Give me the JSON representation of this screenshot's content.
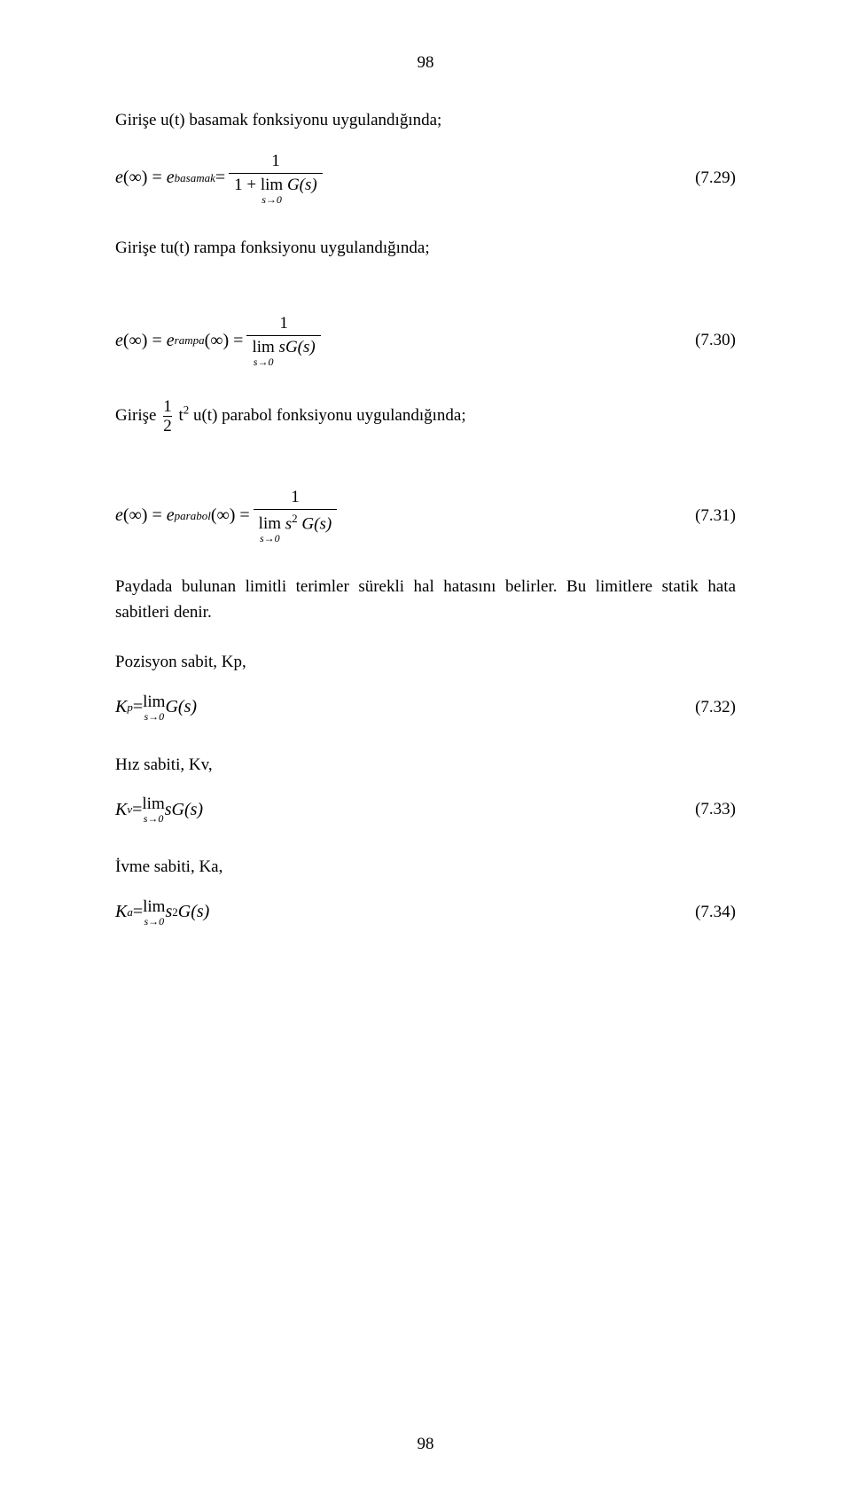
{
  "pagenum_top": "98",
  "pagenum_bottom": "98",
  "line1": "Girişe u(t)  basamak fonksiyonu uygulandığında;",
  "eq29": {
    "lhs_e": "e",
    "lhs_inf": "(∞) =",
    "lhs_sub": "basamak",
    "eq": " =",
    "num1": "1",
    "den_prefix": "1 + ",
    "lim": "lim",
    "limsub": "s→0",
    "Gs": "G(s)",
    "num": "(7.29)"
  },
  "line2": "Girişe tu(t) rampa fonksiyonu uygulandığında;",
  "eq30": {
    "lhs_e": "e",
    "inf1": "(∞) =",
    "sub_rampa": "rampa",
    "inf2": "(∞) =",
    "num1": "1",
    "lim": "lim",
    "limsub": "s→0",
    "sGs": "sG(s)",
    "num": "(7.30)"
  },
  "line3_pre": "Girişe ",
  "line3_frac_num": "1",
  "line3_frac_den": "2",
  "line3_t": " t",
  "line3_sup": "2",
  "line3_rest": " u(t) parabol fonksiyonu uygulandığında;",
  "eq31": {
    "lhs_e": "e",
    "inf1": "(∞) =",
    "sub_parabol": "parabol",
    "inf2": "(∞) =",
    "num1": "1",
    "lim": "lim",
    "limsub": "s→0",
    "s": "s",
    "sup2": "2",
    "Gs": "G(s)",
    "num": "(7.31)"
  },
  "line4": "Paydada bulunan limitli terimler sürekli hal hatasını belirler. Bu limitlere statik hata sabitleri denir.",
  "line5": "Pozisyon sabit, Kp,",
  "eq32": {
    "K": "K",
    "sub": "p",
    "eq": " = ",
    "lim": "lim",
    "limsub": "s→0",
    "Gs": "G(s)",
    "num": "(7.32)"
  },
  "line6": "Hız sabiti, Kv,",
  "eq33": {
    "K": "K",
    "sub": "v",
    "eq": " = ",
    "lim": "lim",
    "limsub": "s→0",
    "sGs": "sG(s)",
    "num": "(7.33)"
  },
  "line7": "İvme sabiti, Ka,",
  "eq34": {
    "K": "K",
    "sub": "a",
    "eq": " = ",
    "lim": "lim",
    "limsub": "s→0",
    "s": "s",
    "sup2": "2",
    "Gs": "G(s)",
    "num": "(7.34)"
  }
}
